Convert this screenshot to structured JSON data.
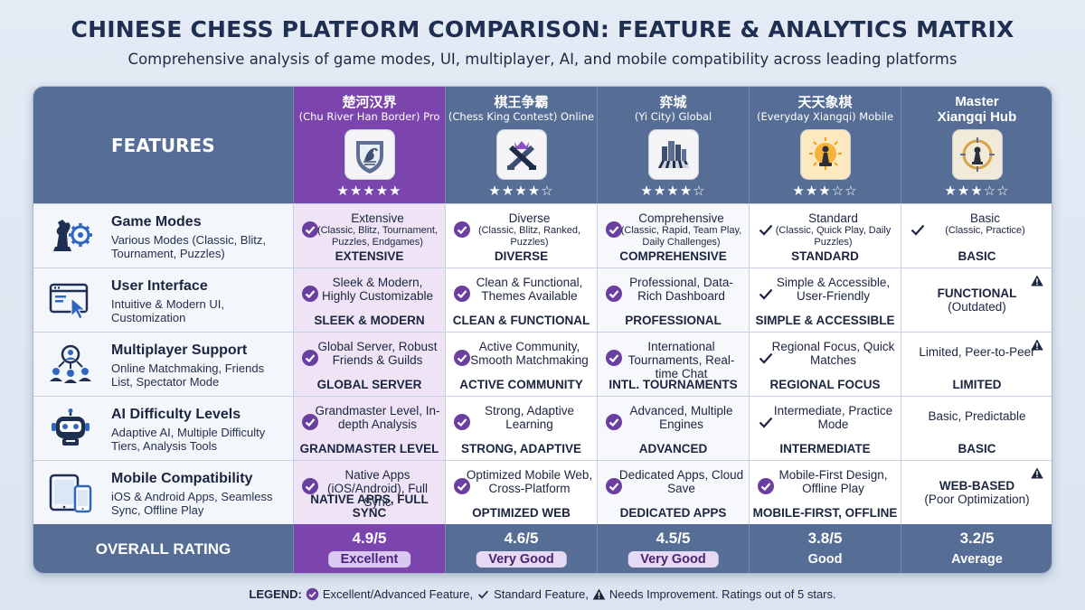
{
  "header": {
    "title": "CHINESE CHESS PLATFORM COMPARISON: FEATURE & ANALYTICS MATRIX",
    "subtitle": "Comprehensive analysis of game modes, UI, multiplayer, AI, and mobile compatibility across leading platforms"
  },
  "table": {
    "features_label": "FEATURES",
    "overall_label": "OVERALL RATING",
    "platforms": [
      {
        "name_cn": "楚河汉界",
        "name_en": "(Chu River Han Border) Pro",
        "stars": "★★★★★",
        "rating": 5,
        "logo": "dragon-shield-icon",
        "score": "4.9/5",
        "verdict": "Excellent"
      },
      {
        "name_cn": "棋王争霸",
        "name_en": "(Chess King Contest) Online",
        "stars": "★★★★☆",
        "rating": 4,
        "logo": "crossed-swords-crown-icon",
        "score": "4.6/5",
        "verdict": "Very Good"
      },
      {
        "name_cn": "弈城",
        "name_en": "(Yi City) Global",
        "stars": "★★★★☆",
        "rating": 4,
        "logo": "city-chessboard-icon",
        "score": "4.5/5",
        "verdict": "Very Good"
      },
      {
        "name_cn": "天天象棋",
        "name_en": "(Everyday Xiangqi) Mobile",
        "stars": "★★★☆☆",
        "rating": 3,
        "logo": "sun-pawn-icon",
        "score": "3.8/5",
        "verdict": "Good"
      },
      {
        "name_cn": "Master",
        "name_en": "Xiangqi Hub",
        "stars": "★★★☆☆",
        "rating": 3,
        "logo": "compass-pawn-icon",
        "score": "3.2/5",
        "verdict": "Average"
      }
    ],
    "rows": [
      {
        "title": "Game Modes",
        "desc": "Various Modes (Classic, Blitz, Tournament, Puzzles)",
        "icon": "chess-gear-icon",
        "cells": [
          {
            "mark": "excellent",
            "line1": "Extensive",
            "line2": "(Classic, Blitz, Tournament, Puzzles, Endgames)",
            "summary": "EXTENSIVE",
            "warn": false
          },
          {
            "mark": "excellent",
            "line1": "Diverse",
            "line2": "(Classic, Blitz, Ranked, Puzzles)",
            "summary": "DIVERSE",
            "warn": false
          },
          {
            "mark": "excellent",
            "line1": "Comprehensive",
            "line2": "(Classic, Rapid, Team Play, Daily Challenges)",
            "summary": "COMPREHENSIVE",
            "warn": false
          },
          {
            "mark": "standard",
            "line1": "Standard",
            "line2": "(Classic, Quick Play, Daily Puzzles)",
            "summary": "STANDARD",
            "warn": false
          },
          {
            "mark": "standard",
            "line1": "Basic",
            "line2": "(Classic, Practice)",
            "summary": "BASIC",
            "warn": false
          }
        ]
      },
      {
        "title": "User Interface",
        "desc": "Intuitive & Modern UI, Customization",
        "icon": "browser-cursor-icon",
        "cells": [
          {
            "mark": "excellent",
            "line1": "Sleek & Modern, Highly Customizable",
            "line2": "",
            "summary": "SLEEK & MODERN",
            "warn": false
          },
          {
            "mark": "excellent",
            "line1": "Clean & Functional, Themes Available",
            "line2": "",
            "summary": "CLEAN & FUNCTIONAL",
            "warn": false
          },
          {
            "mark": "excellent",
            "line1": "Professional, Data-Rich Dashboard",
            "line2": "",
            "summary": "PROFESSIONAL",
            "warn": false
          },
          {
            "mark": "standard",
            "line1": "Simple & Accessible, User-Friendly",
            "line2": "",
            "summary": "SIMPLE & ACCESSIBLE",
            "warn": false
          },
          {
            "mark": "none",
            "line1": "FUNCTIONAL",
            "line2": "(Outdated)",
            "summary": "",
            "warn": true
          }
        ]
      },
      {
        "title": "Multiplayer Support",
        "desc": "Online Matchmaking, Friends List, Spectator Mode",
        "icon": "users-network-icon",
        "cells": [
          {
            "mark": "excellent",
            "line1": "Global Server, Robust Friends & Guilds",
            "line2": "",
            "summary": "GLOBAL SERVER",
            "warn": false
          },
          {
            "mark": "excellent",
            "line1": "Active Community, Smooth Matchmaking",
            "line2": "",
            "summary": "ACTIVE COMMUNITY",
            "warn": false
          },
          {
            "mark": "excellent",
            "line1": "International Tournaments, Real-time Chat",
            "line2": "",
            "summary": "INTL. TOURNAMENTS",
            "warn": false
          },
          {
            "mark": "standard",
            "line1": "Regional Focus, Quick Matches",
            "line2": "",
            "summary": "REGIONAL FOCUS",
            "warn": false
          },
          {
            "mark": "none",
            "line1": "Limited, Peer-to-Peer",
            "line2": "",
            "summary": "LIMITED",
            "warn": true
          }
        ]
      },
      {
        "title": "AI Difficulty Levels",
        "desc": "Adaptive AI, Multiple Difficulty Tiers, Analysis Tools",
        "icon": "robot-icon",
        "cells": [
          {
            "mark": "excellent",
            "line1": "Grandmaster Level, In-depth Analysis",
            "line2": "",
            "summary": "GRANDMASTER LEVEL",
            "warn": false
          },
          {
            "mark": "excellent",
            "line1": "Strong, Adaptive Learning",
            "line2": "",
            "summary": "STRONG, ADAPTIVE",
            "warn": false
          },
          {
            "mark": "excellent",
            "line1": "Advanced, Multiple Engines",
            "line2": "",
            "summary": "ADVANCED",
            "warn": false
          },
          {
            "mark": "standard",
            "line1": "Intermediate, Practice Mode",
            "line2": "",
            "summary": "INTERMEDIATE",
            "warn": false
          },
          {
            "mark": "none",
            "line1": "Basic, Predictable",
            "line2": "",
            "summary": "BASIC",
            "warn": false
          }
        ]
      },
      {
        "title": "Mobile Compatibility",
        "desc": "iOS & Android Apps, Seamless Sync, Offline Play",
        "icon": "tablet-phone-icon",
        "cells": [
          {
            "mark": "excellent",
            "line1": "Native Apps (iOS/Android), Full Sync",
            "line2": "",
            "summary": "NATIVE APPS, FULL SYNC",
            "warn": false
          },
          {
            "mark": "excellent",
            "line1": "Optimized Mobile Web, Cross-Platform",
            "line2": "",
            "summary": "OPTIMIZED WEB",
            "warn": false
          },
          {
            "mark": "excellent",
            "line1": "Dedicated Apps, Cloud Save",
            "line2": "",
            "summary": "DEDICATED APPS",
            "warn": false
          },
          {
            "mark": "excellent",
            "line1": "Mobile-First Design, Offline Play",
            "line2": "",
            "summary": "MOBILE-FIRST, OFFLINE",
            "warn": false
          },
          {
            "mark": "none",
            "line1": "WEB-BASED",
            "line2": "(Poor Optimization)",
            "summary": "",
            "warn": true
          }
        ]
      }
    ]
  },
  "legend": {
    "label": "LEGEND:",
    "excellent": "Excellent/Advanced Feature,",
    "standard": "Standard Feature,",
    "warning": "Needs Improvement. Ratings out of 5 stars."
  },
  "colors": {
    "header_blue": "#566e95",
    "pro_purple": "#7c45ad",
    "check_purple": "#6b3fa0"
  }
}
